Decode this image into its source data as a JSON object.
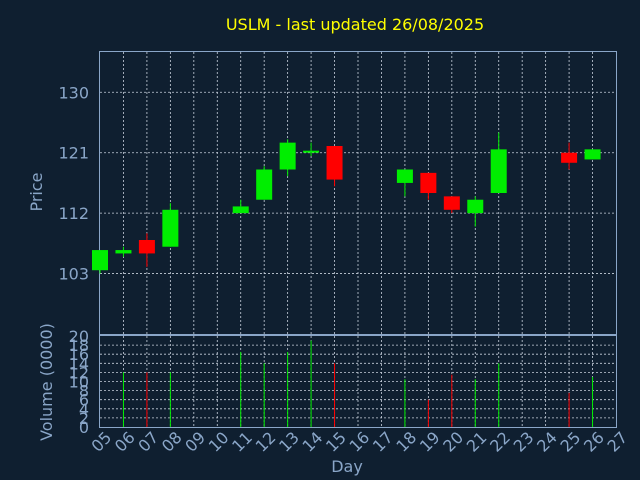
{
  "chart_data": {
    "type": "candlestick",
    "title": "USLM - last updated 26/08/2025",
    "xlabel": "Day",
    "price_panel": {
      "ylabel": "Price",
      "ylim": [
        94,
        136
      ],
      "yticks": [
        103,
        112,
        121,
        130
      ],
      "candles": [
        {
          "day": 5,
          "open": 103.5,
          "high": 106.5,
          "low": 103.0,
          "close": 106.5
        },
        {
          "day": 6,
          "open": 106.0,
          "high": 107.0,
          "low": 105.5,
          "close": 106.5
        },
        {
          "day": 7,
          "open": 108.0,
          "high": 109.0,
          "low": 104.0,
          "close": 106.0
        },
        {
          "day": 8,
          "open": 107.0,
          "high": 113.5,
          "low": 107.0,
          "close": 112.5
        },
        {
          "day": 11,
          "open": 112.0,
          "high": 114.0,
          "low": 112.0,
          "close": 113.0
        },
        {
          "day": 12,
          "open": 114.0,
          "high": 119.0,
          "low": 114.0,
          "close": 118.5
        },
        {
          "day": 13,
          "open": 118.5,
          "high": 123.0,
          "low": 117.5,
          "close": 122.5
        },
        {
          "day": 14,
          "open": 121.0,
          "high": 122.5,
          "low": 120.5,
          "close": 121.3
        },
        {
          "day": 15,
          "open": 122.0,
          "high": 122.0,
          "low": 116.0,
          "close": 117.0
        },
        {
          "day": 18,
          "open": 116.5,
          "high": 118.5,
          "low": 114.5,
          "close": 118.5
        },
        {
          "day": 19,
          "open": 118.0,
          "high": 118.0,
          "low": 114.0,
          "close": 115.0
        },
        {
          "day": 20,
          "open": 114.5,
          "high": 114.5,
          "low": 112.0,
          "close": 112.5
        },
        {
          "day": 21,
          "open": 112.0,
          "high": 114.5,
          "low": 110.0,
          "close": 114.0
        },
        {
          "day": 22,
          "open": 115.0,
          "high": 124.0,
          "low": 115.0,
          "close": 121.5
        },
        {
          "day": 25,
          "open": 121.0,
          "high": 122.5,
          "low": 118.5,
          "close": 119.5
        },
        {
          "day": 26,
          "open": 120.0,
          "high": 121.5,
          "low": 120.0,
          "close": 121.5
        }
      ]
    },
    "volume_panel": {
      "ylabel": "Volume (0000)",
      "ylim": [
        0,
        20
      ],
      "yticks": [
        0,
        2,
        4,
        6,
        8,
        10,
        12,
        14,
        16,
        18,
        20
      ],
      "bars": [
        {
          "day": 6,
          "value": 12.0,
          "direction": "up"
        },
        {
          "day": 7,
          "value": 12.0,
          "direction": "down"
        },
        {
          "day": 8,
          "value": 12.0,
          "direction": "up"
        },
        {
          "day": 11,
          "value": 16.5,
          "direction": "up"
        },
        {
          "day": 12,
          "value": 14.0,
          "direction": "up"
        },
        {
          "day": 13,
          "value": 16.5,
          "direction": "up"
        },
        {
          "day": 14,
          "value": 19.0,
          "direction": "up"
        },
        {
          "day": 15,
          "value": 14.0,
          "direction": "down"
        },
        {
          "day": 18,
          "value": 10.5,
          "direction": "up"
        },
        {
          "day": 19,
          "value": 6.0,
          "direction": "down"
        },
        {
          "day": 20,
          "value": 11.5,
          "direction": "down"
        },
        {
          "day": 21,
          "value": 10.5,
          "direction": "up"
        },
        {
          "day": 22,
          "value": 14.0,
          "direction": "up"
        },
        {
          "day": 25,
          "value": 7.5,
          "direction": "down"
        },
        {
          "day": 26,
          "value": 11.0,
          "direction": "up"
        }
      ]
    },
    "x_ticks": [
      "05",
      "06",
      "07",
      "08",
      "09",
      "10",
      "11",
      "12",
      "13",
      "14",
      "15",
      "16",
      "17",
      "18",
      "19",
      "20",
      "21",
      "22",
      "23",
      "24",
      "25",
      "26",
      "27"
    ],
    "x_first_day": 5,
    "grid": true,
    "colors": {
      "background": "#0f1f30",
      "frame": "#8aa6c8",
      "grid": "#c8d0dc",
      "up": "#00ee00",
      "down": "#ff0000",
      "title": "#ffff00",
      "text": "#8aa6c8"
    }
  }
}
